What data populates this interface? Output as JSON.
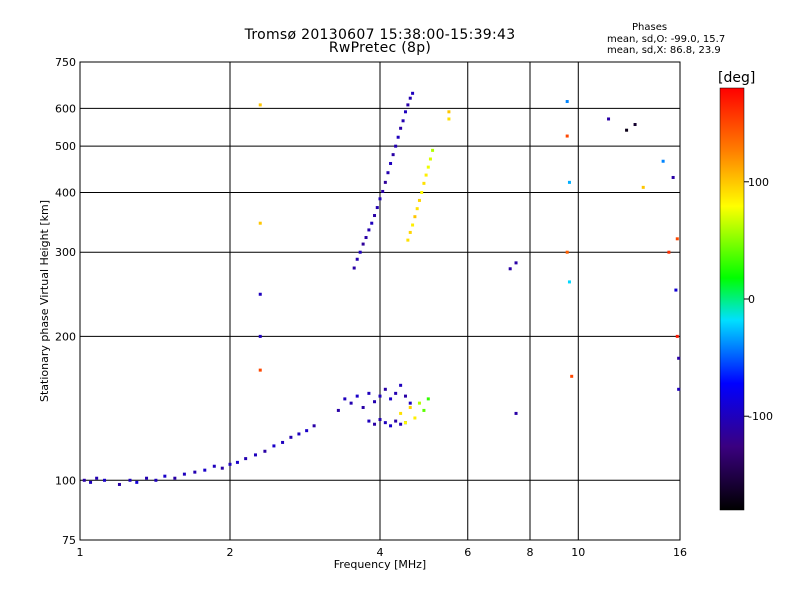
{
  "chart_data": {
    "type": "scatter",
    "title": "Tromsø 20130607 15:38:00-15:39:43",
    "subtitle": "RwPretec (8p)",
    "xlabel": "Frequency [MHz]",
    "ylabel": "Stationary phase Virtual Height [km]",
    "xscale": "log",
    "yscale": "log",
    "xlim": [
      1,
      16
    ],
    "ylim": [
      75,
      750
    ],
    "xticks": [
      1,
      2,
      4,
      6,
      8,
      10,
      16
    ],
    "yticks": [
      75,
      100,
      200,
      300,
      400,
      500,
      600,
      750
    ],
    "grid": true,
    "stats": {
      "title": "Phases",
      "o_line": "mean, sd,O: -99.0, 15.7",
      "x_line": "mean, sd,X:  86.8, 23.9"
    },
    "colorbar": {
      "label": "[deg]",
      "range": [
        -180,
        180
      ],
      "ticks": [
        100,
        0,
        -100
      ],
      "tick_labels": [
        "100",
        "0",
        "-100"
      ]
    },
    "series": [
      {
        "x": [
          1.02,
          1.05,
          1.08,
          1.12,
          1.2,
          1.26,
          1.3,
          1.36,
          1.42,
          1.48,
          1.55,
          1.62,
          1.7,
          1.78,
          1.86,
          1.93,
          2.0,
          2.07,
          2.15,
          2.25,
          2.35,
          2.45,
          2.55,
          2.65,
          2.75,
          2.85,
          2.95
        ],
        "y": [
          100,
          99,
          101,
          100,
          98,
          100,
          99,
          101,
          100,
          102,
          101,
          103,
          104,
          105,
          107,
          106,
          108,
          109,
          111,
          113,
          115,
          118,
          120,
          123,
          125,
          127,
          130
        ],
        "phase": [
          -110,
          -100,
          -105,
          -95,
          -110,
          -100,
          -90,
          -105,
          -100,
          -95,
          -110,
          -100,
          -105,
          -95,
          -100,
          -110,
          -100,
          -95,
          -105,
          -100,
          -110,
          -95,
          -100,
          -105,
          -100,
          -95,
          -110
        ]
      },
      {
        "x": [
          3.55,
          3.6,
          3.65,
          3.7,
          3.75,
          3.8,
          3.85,
          3.9,
          3.95,
          4.0,
          4.05,
          4.1,
          4.15,
          4.2,
          4.25,
          4.3,
          4.35,
          4.4,
          4.45,
          4.5,
          4.55,
          4.6,
          4.65
        ],
        "y": [
          278,
          290,
          300,
          312,
          322,
          334,
          345,
          358,
          372,
          388,
          402,
          420,
          440,
          460,
          480,
          500,
          522,
          545,
          565,
          590,
          610,
          630,
          645
        ],
        "phase": [
          -110,
          -105,
          -100,
          -115,
          -110,
          -105,
          -100,
          -110,
          -105,
          -100,
          -110,
          -115,
          -105,
          -100,
          -110,
          -105,
          -100,
          -110,
          -105,
          -100,
          -110,
          -105,
          -100
        ]
      },
      {
        "x": [
          4.55,
          4.6,
          4.65,
          4.7,
          4.75,
          4.8,
          4.85,
          4.9,
          4.95,
          5.0,
          5.05,
          5.1
        ],
        "y": [
          318,
          330,
          342,
          356,
          370,
          385,
          400,
          418,
          435,
          452,
          470,
          490
        ],
        "phase": [
          90,
          95,
          85,
          100,
          90,
          95,
          80,
          90,
          85,
          75,
          70,
          60
        ]
      },
      {
        "x": [
          3.3,
          3.4,
          3.5,
          3.6,
          3.7,
          3.8,
          3.9,
          4.0,
          4.1,
          4.2,
          4.3,
          4.4,
          4.5,
          4.6
        ],
        "y": [
          140,
          148,
          145,
          150,
          142,
          152,
          146,
          150,
          155,
          148,
          152,
          158,
          150,
          145
        ],
        "phase": [
          -110,
          -100,
          -105,
          -95,
          -110,
          -100,
          -105,
          -100,
          -110,
          -95,
          -105,
          -100,
          -110,
          -100
        ]
      },
      {
        "x": [
          3.8,
          3.9,
          4.0,
          4.1,
          4.2,
          4.3,
          4.4,
          4.5
        ],
        "y": [
          133,
          131,
          134,
          132,
          130,
          133,
          131,
          132
        ],
        "phase": [
          -100,
          -110,
          -105,
          -100,
          -95,
          -110,
          -100,
          -105
        ]
      },
      {
        "x": [
          4.4,
          4.5,
          4.6,
          4.7,
          4.8,
          4.9,
          5.0
        ],
        "y": [
          138,
          132,
          142,
          135,
          145,
          140,
          148
        ],
        "phase": [
          90,
          80,
          95,
          85,
          60,
          40,
          30
        ]
      },
      {
        "x": [
          2.3,
          2.3,
          2.3,
          2.3,
          2.3,
          5.5,
          5.5,
          7.3,
          7.5,
          7.5,
          9.5,
          9.5,
          9.5,
          9.6,
          9.6,
          9.7,
          11.5,
          12.5,
          13.0,
          13.5,
          14.8,
          15.2,
          15.5,
          15.7,
          15.8,
          15.8,
          15.9,
          15.9
        ],
        "y": [
          610,
          345,
          245,
          200,
          170,
          570,
          590,
          277,
          285,
          138,
          620,
          525,
          300,
          420,
          260,
          165,
          570,
          540,
          555,
          410,
          465,
          300,
          430,
          250,
          320,
          200,
          180,
          155
        ],
        "phase": [
          100,
          100,
          -100,
          -100,
          150,
          90,
          100,
          -110,
          -110,
          -110,
          -40,
          150,
          140,
          -30,
          -20,
          150,
          -110,
          -170,
          -160,
          100,
          -40,
          160,
          -110,
          -90,
          150,
          170,
          -110,
          -100
        ]
      }
    ]
  }
}
